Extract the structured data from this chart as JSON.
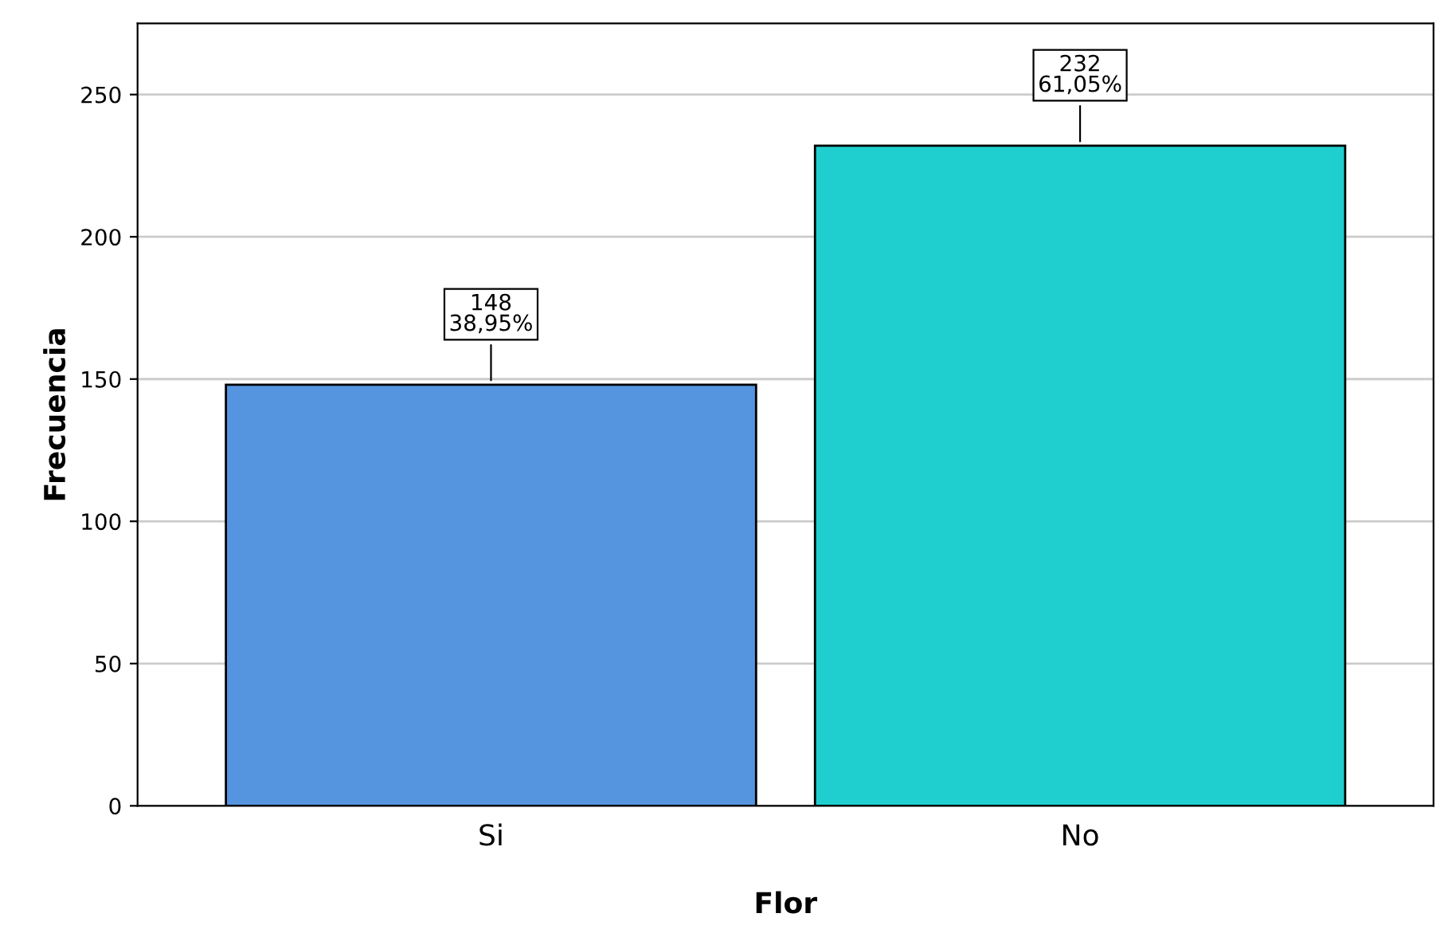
{
  "chart_data": {
    "type": "bar",
    "xlabel": "Flor",
    "ylabel": "Frecuencia",
    "categories": [
      "Si",
      "No"
    ],
    "values": [
      148,
      232
    ],
    "colors": [
      "#5595e0",
      "#1fcfcf"
    ],
    "value_labels": [
      "148\n38,95%",
      "232\n61,05%"
    ],
    "ylim": [
      0,
      275
    ],
    "yticks": [
      0,
      50,
      100,
      150,
      200,
      250
    ],
    "grid": "y"
  }
}
